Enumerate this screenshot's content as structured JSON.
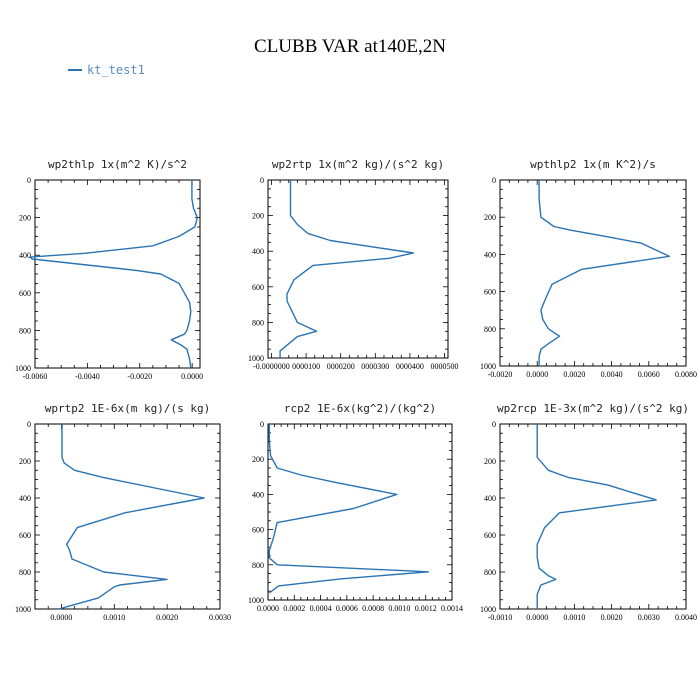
{
  "title": "CLUBB VAR at140E,2N",
  "legend": {
    "label": "kt_test1",
    "color": "#2a74b4"
  },
  "chart_data": [
    {
      "type": "line",
      "title": "wp2thlp  1x(m^2 K)/s^2",
      "xlim": [
        -0.006,
        0.0003
      ],
      "ylim": [
        0,
        1000
      ],
      "xticks": [
        -0.006,
        -0.004,
        -0.002,
        0.0
      ],
      "xticklabels": [
        "-0.0060",
        "-0.0040",
        "-0.0020",
        "0.0000"
      ],
      "yticks": [
        0,
        200,
        400,
        600,
        800,
        1000
      ],
      "yticklabels": [
        "0",
        "200",
        "400",
        "600",
        "800",
        "1000"
      ],
      "series": [
        {
          "x": [
            -1e-05,
            -1e-05,
            5e-05,
            0.0002,
            0.0001,
            -0.0005,
            -0.0015,
            -0.0041,
            -0.0062,
            -0.0061,
            -0.0022,
            -0.0012,
            -0.0005,
            -0.0003,
            -0.0001,
            -5e-05,
            -0.0001,
            -0.0002,
            -0.0003,
            -0.0008,
            -0.0004,
            -0.0002,
            -0.0001,
            -5e-05
          ],
          "y": [
            0,
            100,
            150,
            200,
            250,
            300,
            350,
            390,
            410,
            420,
            480,
            500,
            550,
            600,
            650,
            700,
            750,
            800,
            820,
            850,
            880,
            900,
            950,
            1000
          ]
        }
      ]
    },
    {
      "type": "line",
      "title": "wp2rtp  1x(m^2 kg)/(s^2 kg)",
      "xlim": [
        -1e-06,
        5.1e-05
      ],
      "ylim": [
        0,
        1000
      ],
      "xticks": [
        0.0,
        1e-05,
        2e-05,
        3e-05,
        4e-05,
        5e-05
      ],
      "xticklabels": [
        "-0.0000000",
        "0000100",
        "0000200",
        "0000300",
        "0000400",
        "0000500"
      ],
      "yticks": [
        0,
        200,
        400,
        600,
        800,
        1000
      ],
      "yticklabels": [
        "0",
        "200",
        "400",
        "600",
        "800",
        "1000"
      ],
      "series": [
        {
          "x": [
            5.5e-06,
            5.5e-06,
            5.5e-06,
            7.5e-06,
            1.05e-05,
            1.7e-05,
            4.1e-05,
            3.4e-05,
            1.2e-05,
            6.5e-06,
            4.5e-06,
            4.5e-06,
            5.5e-06,
            7.5e-06,
            1.3e-05,
            7.5e-06,
            2.5e-06,
            2.5e-06
          ],
          "y": [
            0,
            100,
            200,
            250,
            300,
            340,
            410,
            440,
            480,
            560,
            640,
            680,
            720,
            800,
            850,
            880,
            960,
            1000
          ]
        }
      ]
    },
    {
      "type": "line",
      "title": "wpthlp2  1x(m K^2)/s",
      "xlim": [
        -0.002,
        0.008
      ],
      "ylim": [
        0,
        1000
      ],
      "xticks": [
        -0.002,
        0.0,
        0.002,
        0.004,
        0.006,
        0.008
      ],
      "xticklabels": [
        "-0.0020",
        "0.0000",
        "0.0020",
        "0.0040",
        "0.0060",
        "0.0080"
      ],
      "yticks": [
        0,
        200,
        400,
        600,
        800,
        1000
      ],
      "yticklabels": [
        "0",
        "200",
        "400",
        "600",
        "800",
        "1000"
      ],
      "series": [
        {
          "x": [
            0.0001,
            0.0001,
            0.0002,
            0.0009,
            0.0018,
            0.0035,
            0.0056,
            0.0071,
            0.0024,
            0.0008,
            0.0004,
            0.0002,
            0.0003,
            0.0006,
            0.0012,
            0.0006,
            0.0002,
            0.0001,
            0.0001
          ],
          "y": [
            0,
            100,
            200,
            250,
            270,
            300,
            340,
            410,
            480,
            560,
            650,
            700,
            750,
            800,
            840,
            880,
            910,
            950,
            1000
          ]
        }
      ]
    },
    {
      "type": "line",
      "title": "wprtp2  1E-6x(m kg)/(s kg)",
      "xlim": [
        -0.0005,
        0.003
      ],
      "ylim": [
        0,
        1000
      ],
      "xticks": [
        0.0,
        0.001,
        0.002,
        0.003
      ],
      "xticklabels": [
        "0.0000",
        "0.0010",
        "0.0020",
        "0.0030"
      ],
      "yticks": [
        0,
        200,
        400,
        600,
        800,
        1000
      ],
      "yticklabels": [
        "0",
        "200",
        "400",
        "600",
        "800",
        "1000"
      ],
      "series": [
        {
          "x": [
            1e-05,
            1e-05,
            1e-05,
            5e-05,
            0.00025,
            0.0008,
            0.0027,
            0.0012,
            0.0003,
            0.0001,
            0.00015,
            0.0002,
            0.0008,
            0.002,
            0.0011,
            0.001,
            0.0007,
            0.0002,
            -5e-05
          ],
          "y": [
            0,
            100,
            180,
            210,
            250,
            290,
            400,
            480,
            560,
            650,
            680,
            730,
            800,
            840,
            870,
            880,
            940,
            980,
            1000
          ]
        }
      ]
    },
    {
      "type": "line",
      "title": "rcp2  1E-6x(kg^2)/(kg^2)",
      "xlim": [
        0.0,
        0.0014
      ],
      "ylim": [
        0,
        1000
      ],
      "xticks": [
        0.0,
        0.0002,
        0.0004,
        0.0006,
        0.0008,
        0.001,
        0.0012,
        0.0014
      ],
      "xticklabels": [
        "0.0000",
        "0.0002",
        "0.0004",
        "0.0006",
        "0.0008",
        "0.0010",
        "0.0012",
        "0.0014"
      ],
      "yticks": [
        0,
        200,
        400,
        600,
        800,
        1000
      ],
      "yticklabels": [
        "0",
        "200",
        "400",
        "600",
        "800",
        "1000"
      ],
      "series": [
        {
          "x": [
            1e-05,
            1e-05,
            2e-05,
            7e-05,
            0.00025,
            0.0005,
            0.00098,
            0.00065,
            7e-05,
            4e-05,
            1e-05,
            1e-05,
            7e-05,
            0.00122,
            0.00055,
            8e-05,
            1e-05
          ],
          "y": [
            0,
            100,
            180,
            250,
            290,
            330,
            400,
            480,
            560,
            650,
            720,
            760,
            800,
            840,
            880,
            920,
            960
          ]
        }
      ]
    },
    {
      "type": "line",
      "title": "wp2rcp  1E-3x(m^2 kg)/(s^2 kg)",
      "xlim": [
        -0.001,
        0.004
      ],
      "ylim": [
        0,
        1000
      ],
      "xticks": [
        -0.001,
        0.0,
        0.001,
        0.002,
        0.003,
        0.004
      ],
      "xticklabels": [
        "-0.0010",
        "0.0000",
        "0.0010",
        "0.0020",
        "0.0030",
        "0.0040"
      ],
      "yticks": [
        0,
        200,
        400,
        600,
        800,
        1000
      ],
      "yticklabels": [
        "0",
        "200",
        "400",
        "600",
        "800",
        "1000"
      ],
      "series": [
        {
          "x": [
            0.0,
            0.0,
            0.0,
            0.0003,
            0.00085,
            0.0019,
            0.0032,
            0.0006,
            0.0002,
            0.0,
            0.0,
            5e-05,
            0.0003,
            0.0005,
            0.0001,
            0.0,
            0.0
          ],
          "y": [
            0,
            100,
            180,
            250,
            290,
            330,
            410,
            480,
            560,
            650,
            720,
            780,
            820,
            840,
            870,
            920,
            1000
          ]
        }
      ]
    }
  ]
}
